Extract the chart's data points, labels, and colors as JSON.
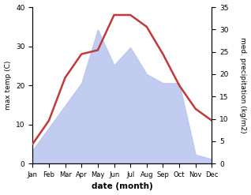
{
  "months": [
    "Jan",
    "Feb",
    "Mar",
    "Apr",
    "May",
    "Jun",
    "Jul",
    "Aug",
    "Sep",
    "Oct",
    "Nov",
    "Dec"
  ],
  "temperature": [
    5,
    11,
    22,
    28,
    29,
    38,
    38,
    35,
    28,
    20,
    14,
    11
  ],
  "precipitation": [
    3,
    8,
    13,
    18,
    30,
    22,
    26,
    20,
    18,
    18,
    2,
    1
  ],
  "temp_color": "#c0393b",
  "precip_color": "#b8c4ee",
  "temp_ylim": [
    0,
    40
  ],
  "precip_ylim": [
    0,
    35
  ],
  "temp_yticks": [
    0,
    10,
    20,
    30,
    40
  ],
  "precip_yticks": [
    0,
    5,
    10,
    15,
    20,
    25,
    30,
    35
  ],
  "ylabel_left": "max temp (C)",
  "ylabel_right": "med. precipitation (kg/m2)",
  "xlabel": "date (month)",
  "figsize": [
    3.18,
    2.47
  ],
  "dpi": 100
}
